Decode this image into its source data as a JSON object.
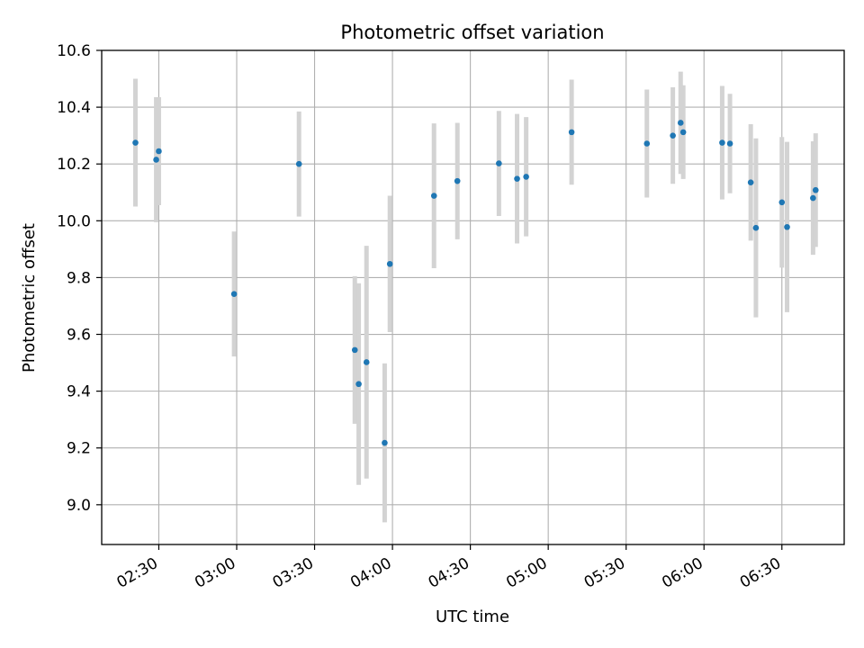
{
  "chart_data": {
    "type": "scatter",
    "title": "Photometric offset variation",
    "xlabel": "UTC time",
    "ylabel": "Photometric offset",
    "xlim": [
      "02:08",
      "06:54"
    ],
    "ylim": [
      8.86,
      10.6
    ],
    "x_ticks": [
      "02:30",
      "03:00",
      "03:30",
      "04:00",
      "04:30",
      "05:00",
      "05:30",
      "06:00",
      "06:30"
    ],
    "y_ticks": [
      9.0,
      9.2,
      9.4,
      9.6,
      9.8,
      10.0,
      10.2,
      10.4,
      10.6
    ],
    "grid": true,
    "colors": {
      "points": "#1f77b4",
      "error_bars": "#d3d3d3",
      "grid": "#b0b0b0"
    },
    "series": [
      {
        "points": [
          {
            "t": "02:21:00",
            "y": 10.275,
            "err": 0.225
          },
          {
            "t": "02:29:00",
            "y": 10.215,
            "err": 0.22
          },
          {
            "t": "02:30:00",
            "y": 10.245,
            "err": 0.19
          },
          {
            "t": "02:59:00",
            "y": 9.742,
            "err": 0.22
          },
          {
            "t": "03:24:00",
            "y": 10.2,
            "err": 0.185
          },
          {
            "t": "03:45:30",
            "y": 9.545,
            "err": 0.26
          },
          {
            "t": "03:47:00",
            "y": 9.425,
            "err": 0.355
          },
          {
            "t": "03:50:00",
            "y": 9.502,
            "err": 0.41
          },
          {
            "t": "03:57:00",
            "y": 9.218,
            "err": 0.28
          },
          {
            "t": "03:59:00",
            "y": 9.848,
            "err": 0.24
          },
          {
            "t": "04:16:00",
            "y": 10.088,
            "err": 0.255
          },
          {
            "t": "04:25:00",
            "y": 10.14,
            "err": 0.205
          },
          {
            "t": "04:41:00",
            "y": 10.202,
            "err": 0.185
          },
          {
            "t": "04:48:00",
            "y": 10.148,
            "err": 0.228
          },
          {
            "t": "04:51:30",
            "y": 10.155,
            "err": 0.21
          },
          {
            "t": "05:09:00",
            "y": 10.312,
            "err": 0.185
          },
          {
            "t": "05:38:00",
            "y": 10.272,
            "err": 0.19
          },
          {
            "t": "05:48:00",
            "y": 10.3,
            "err": 0.17
          },
          {
            "t": "05:51:00",
            "y": 10.345,
            "err": 0.18
          },
          {
            "t": "05:52:00",
            "y": 10.312,
            "err": 0.165
          },
          {
            "t": "06:07:00",
            "y": 10.275,
            "err": 0.2
          },
          {
            "t": "06:10:00",
            "y": 10.272,
            "err": 0.175
          },
          {
            "t": "06:18:00",
            "y": 10.135,
            "err": 0.205
          },
          {
            "t": "06:20:00",
            "y": 9.975,
            "err": 0.315
          },
          {
            "t": "06:30:00",
            "y": 10.065,
            "err": 0.23
          },
          {
            "t": "06:32:00",
            "y": 9.978,
            "err": 0.3
          },
          {
            "t": "06:42:00",
            "y": 10.08,
            "err": 0.2
          },
          {
            "t": "06:43:00",
            "y": 10.108,
            "err": 0.2
          }
        ]
      }
    ]
  }
}
